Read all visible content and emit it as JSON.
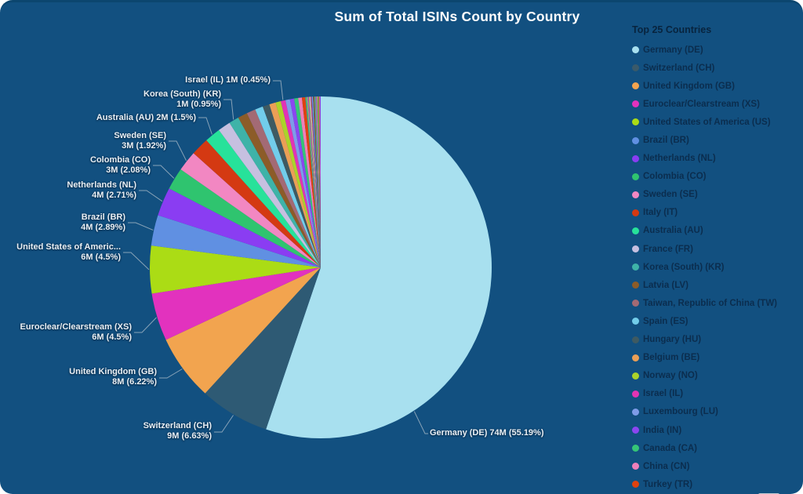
{
  "title": "Sum of Total ISINs Count by Country",
  "legend": {
    "title": "Top 25 Countries",
    "items": [
      {
        "label": "Germany (DE)",
        "color": "#a8e0ef"
      },
      {
        "label": "Switzerland (CH)",
        "color": "#3a5a6a"
      },
      {
        "label": "United Kingdom (GB)",
        "color": "#f2a44f"
      },
      {
        "label": "Euroclear/Clearstream (XS)",
        "color": "#e232be"
      },
      {
        "label": "United States of America (US)",
        "color": "#abdc15"
      },
      {
        "label": "Brazil (BR)",
        "color": "#6090e2"
      },
      {
        "label": "Netherlands (NL)",
        "color": "#8a3df2"
      },
      {
        "label": "Colombia (CO)",
        "color": "#2fc46f"
      },
      {
        "label": "Sweden (SE)",
        "color": "#f287c2"
      },
      {
        "label": "Italy (IT)",
        "color": "#d43912"
      },
      {
        "label": "Australia (AU)",
        "color": "#27e29a"
      },
      {
        "label": "France (FR)",
        "color": "#c6c0e0"
      },
      {
        "label": "Korea (South) (KR)",
        "color": "#3eb3a8"
      },
      {
        "label": "Latvia (LV)",
        "color": "#8c5c28"
      },
      {
        "label": "Taiwan, Republic of China (TW)",
        "color": "#a36a74"
      },
      {
        "label": "Spain (ES)",
        "color": "#72cdea"
      },
      {
        "label": "Hungary (HU)",
        "color": "#3e5a62"
      },
      {
        "label": "Belgium (BE)",
        "color": "#eb9f56"
      },
      {
        "label": "Norway (NO)",
        "color": "#abd32a"
      },
      {
        "label": "Israel (IL)",
        "color": "#e234b4"
      },
      {
        "label": "Luxembourg (LU)",
        "color": "#7e9ce8"
      },
      {
        "label": "India (IN)",
        "color": "#8b46f0"
      },
      {
        "label": "Canada (CA)",
        "color": "#35c577"
      },
      {
        "label": "China (CN)",
        "color": "#ef7fba"
      },
      {
        "label": "Turkey (TR)",
        "color": "#df420f"
      }
    ]
  },
  "chart_data": {
    "type": "pie",
    "title": "Sum of Total ISINs Count by Country",
    "legend_position": "right",
    "start_angle_deg": 0,
    "direction": "clockwise",
    "slices": [
      {
        "code": "DE",
        "name": "Germany (DE)",
        "value": "74M",
        "pct": 55.19,
        "color": "#a8e0ef",
        "label_lines": [
          "Germany (DE) 74M (55.19%)"
        ]
      },
      {
        "code": "CH",
        "name": "Switzerland (CH)",
        "value": "9M",
        "pct": 6.63,
        "color": "#2e5a74",
        "label_lines": [
          "Switzerland (CH)",
          "9M (6.63%)"
        ]
      },
      {
        "code": "GB",
        "name": "United Kingdom (GB)",
        "value": "8M",
        "pct": 6.22,
        "color": "#f2a44f",
        "label_lines": [
          "United Kingdom (GB)",
          "8M (6.22%)"
        ]
      },
      {
        "code": "XS",
        "name": "Euroclear/Clearstream (XS)",
        "value": "6M",
        "pct": 4.5,
        "color": "#e232be",
        "label_lines": [
          "Euroclear/Clearstream (XS)",
          "6M (4.5%)"
        ]
      },
      {
        "code": "US",
        "name": "United States of America (US)",
        "value": "6M",
        "pct": 4.5,
        "color": "#abdc15",
        "label_lines": [
          "United States of Americ...",
          "6M (4.5%)"
        ]
      },
      {
        "code": "BR",
        "name": "Brazil (BR)",
        "value": "4M",
        "pct": 2.89,
        "color": "#6090e2",
        "label_lines": [
          "Brazil (BR)",
          "4M (2.89%)"
        ]
      },
      {
        "code": "NL",
        "name": "Netherlands (NL)",
        "value": "4M",
        "pct": 2.71,
        "color": "#8a3df2",
        "label_lines": [
          "Netherlands (NL)",
          "4M (2.71%)"
        ]
      },
      {
        "code": "CO",
        "name": "Colombia (CO)",
        "value": "3M",
        "pct": 2.08,
        "color": "#2fc46f",
        "label_lines": [
          "Colombia (CO)",
          "3M (2.08%)"
        ]
      },
      {
        "code": "SE",
        "name": "Sweden (SE)",
        "value": "3M",
        "pct": 1.92,
        "color": "#f287c2",
        "label_lines": [
          "Sweden (SE)",
          "3M (1.92%)"
        ]
      },
      {
        "code": "IT",
        "name": "Italy (IT)",
        "value": null,
        "pct": 1.7,
        "estimated": true,
        "color": "#d43912",
        "label_lines": null
      },
      {
        "code": "AU",
        "name": "Australia (AU)",
        "value": "2M",
        "pct": 1.5,
        "color": "#27e29a",
        "label_lines": [
          "Australia (AU) 2M (1.5%)"
        ]
      },
      {
        "code": "FR",
        "name": "France (FR)",
        "value": null,
        "pct": 1.2,
        "estimated": true,
        "color": "#c6c0e0",
        "label_lines": null
      },
      {
        "code": "KR",
        "name": "Korea (South) (KR)",
        "value": "1M",
        "pct": 0.95,
        "color": "#3eb3a8",
        "label_lines": [
          "Korea (South) (KR)",
          "1M (0.95%)"
        ]
      },
      {
        "code": "LV",
        "name": "Latvia (LV)",
        "value": null,
        "pct": 0.9,
        "estimated": true,
        "color": "#8c5c28",
        "label_lines": null
      },
      {
        "code": "TW",
        "name": "Taiwan, Republic of China (TW)",
        "value": null,
        "pct": 0.85,
        "estimated": true,
        "color": "#a36a74",
        "label_lines": null
      },
      {
        "code": "ES",
        "name": "Spain (ES)",
        "value": null,
        "pct": 0.75,
        "estimated": true,
        "color": "#72cdea",
        "label_lines": null
      },
      {
        "code": "HU",
        "name": "Hungary (HU)",
        "value": null,
        "pct": 0.65,
        "estimated": true,
        "color": "#3e5a62",
        "label_lines": null
      },
      {
        "code": "BE",
        "name": "Belgium (BE)",
        "value": null,
        "pct": 0.6,
        "estimated": true,
        "color": "#eb9f56",
        "label_lines": null
      },
      {
        "code": "NO",
        "name": "Norway (NO)",
        "value": null,
        "pct": 0.5,
        "estimated": true,
        "color": "#abd32a",
        "label_lines": null
      },
      {
        "code": "IL",
        "name": "Israel (IL)",
        "value": "1M",
        "pct": 0.45,
        "color": "#e234b4",
        "label_lines": [
          "Israel (IL) 1M (0.45%)"
        ]
      },
      {
        "code": "LU",
        "name": "Luxembourg (LU)",
        "value": null,
        "pct": 0.42,
        "estimated": true,
        "color": "#7e9ce8",
        "label_lines": null
      },
      {
        "code": "IN",
        "name": "India (IN)",
        "value": null,
        "pct": 0.4,
        "estimated": true,
        "color": "#8b46f0",
        "label_lines": null
      },
      {
        "code": "CA",
        "name": "Canada (CA)",
        "value": null,
        "pct": 0.38,
        "estimated": true,
        "color": "#35c577",
        "label_lines": null
      },
      {
        "code": "CN",
        "name": "China (CN)",
        "value": null,
        "pct": 0.35,
        "estimated": true,
        "color": "#ef7fba",
        "label_lines": null
      },
      {
        "code": "TR",
        "name": "Turkey (TR)",
        "value": null,
        "pct": 0.32,
        "estimated": true,
        "color": "#df420f",
        "label_lines": null
      }
    ],
    "others": {
      "pct_total": 1.44,
      "count": 22,
      "estimated": true
    },
    "sliver_palette": [
      "#3eb3a8",
      "#2fc46f",
      "#f2a44f",
      "#6090e2",
      "#e232be",
      "#abdc15",
      "#c6c0e0",
      "#f287c2",
      "#8c5c28",
      "#8b46f0",
      "#72cdea",
      "#3e5a62",
      "#d43912",
      "#27e29a",
      "#a36a74",
      "#7e9ce8",
      "#e234b4",
      "#abd32a",
      "#35c577",
      "#df420f",
      "#ef7fba",
      "#8a3df2"
    ]
  }
}
